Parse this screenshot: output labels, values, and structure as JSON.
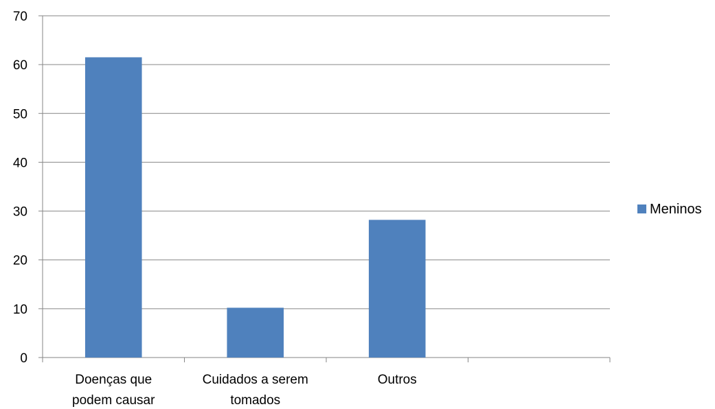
{
  "chart_data": {
    "type": "bar",
    "categories": [
      [
        "Doenças que",
        "podem causar"
      ],
      [
        "Cuidados a serem",
        "tomados"
      ],
      [
        "Outros"
      ],
      [
        ""
      ]
    ],
    "series": [
      {
        "name": "Meninos",
        "color": "#4F81BD",
        "values": [
          61.5,
          10.2,
          28.2,
          null
        ]
      }
    ],
    "ylim": [
      0,
      70
    ],
    "yticks": [
      0,
      10,
      20,
      30,
      40,
      50,
      60,
      70
    ],
    "grid": true,
    "legend_position": "right",
    "title": "",
    "xlabel": "",
    "ylabel": ""
  }
}
